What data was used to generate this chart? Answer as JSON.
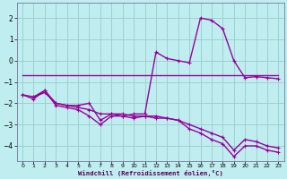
{
  "xlabel": "Windchill (Refroidissement éolien,°C)",
  "bg_color": "#c0eef0",
  "grid_color": "#99cccc",
  "line_color": "#990099",
  "xlim": [
    -0.5,
    23.5
  ],
  "ylim": [
    -4.7,
    2.7
  ],
  "xticks": [
    0,
    1,
    2,
    3,
    4,
    5,
    6,
    7,
    8,
    9,
    10,
    11,
    12,
    13,
    14,
    15,
    16,
    17,
    18,
    19,
    20,
    21,
    22,
    23
  ],
  "yticks": [
    -4,
    -3,
    -2,
    -1,
    0,
    1,
    2
  ],
  "series": {
    "line1_x": [
      0,
      1,
      2,
      3,
      4,
      5,
      6,
      7,
      8,
      9,
      10,
      11,
      12,
      13,
      14,
      15,
      16,
      17,
      18,
      19,
      20,
      21,
      22,
      23
    ],
    "line1_y": [
      -0.7,
      -0.7,
      -0.7,
      -0.7,
      -0.7,
      -0.7,
      -0.7,
      -0.7,
      -0.7,
      -0.7,
      -0.7,
      -0.7,
      -0.7,
      -0.7,
      -0.7,
      -0.7,
      -0.7,
      -0.7,
      -0.7,
      -0.7,
      -0.7,
      -0.7,
      -0.7,
      -0.7
    ],
    "line2_x": [
      0,
      1,
      2,
      3,
      4,
      5,
      6,
      7,
      8,
      9,
      10,
      11,
      12,
      13,
      14,
      15,
      16,
      17,
      18,
      19,
      20,
      21,
      22,
      23
    ],
    "line2_y": [
      -1.6,
      -1.7,
      -1.5,
      -2.0,
      -2.1,
      -2.2,
      -2.3,
      -2.5,
      -2.5,
      -2.5,
      -2.6,
      -2.6,
      -2.6,
      -2.7,
      -2.8,
      -3.0,
      -3.2,
      -3.4,
      -3.6,
      -4.2,
      -3.7,
      -3.8,
      -4.0,
      -4.1
    ],
    "line3_x": [
      0,
      1,
      2,
      3,
      4,
      5,
      6,
      7,
      8,
      9,
      10,
      11,
      12,
      13,
      14,
      15,
      16,
      17,
      18,
      19,
      20,
      21,
      22,
      23
    ],
    "line3_y": [
      -1.6,
      -1.8,
      -1.4,
      -2.1,
      -2.2,
      -2.3,
      -2.6,
      -3.0,
      -2.6,
      -2.6,
      -2.7,
      -2.6,
      -2.7,
      -2.7,
      -2.8,
      -3.2,
      -3.4,
      -3.7,
      -3.9,
      -4.5,
      -4.0,
      -4.0,
      -4.2,
      -4.3
    ],
    "line4_x": [
      1,
      2,
      3,
      4,
      5,
      6,
      7,
      8,
      9,
      10,
      11,
      12,
      13,
      14,
      15,
      16,
      17,
      18,
      19,
      20,
      21,
      22,
      23
    ],
    "line4_y": [
      -1.7,
      -1.4,
      -2.0,
      -2.1,
      -2.1,
      -2.0,
      -2.8,
      -2.5,
      -2.6,
      -2.5,
      -2.5,
      0.4,
      0.1,
      0.0,
      -0.1,
      2.0,
      1.9,
      1.5,
      0.0,
      -0.8,
      -0.75,
      -0.8,
      -0.85
    ]
  }
}
